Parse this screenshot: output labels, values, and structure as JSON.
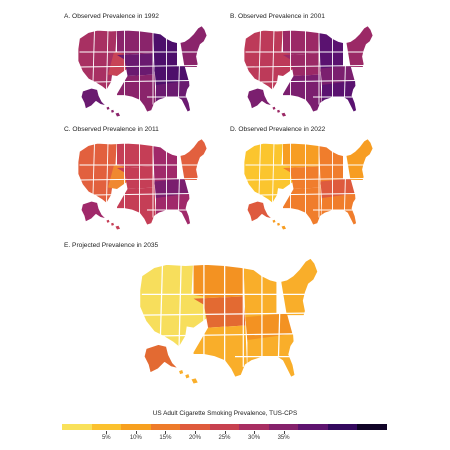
{
  "panels": [
    {
      "id": "A",
      "title": "A. Observed Prevalence in 1992",
      "palette": [
        "#4d0f6b",
        "#6a1a70",
        "#8a246b",
        "#a83062",
        "#c84456"
      ]
    },
    {
      "id": "B",
      "title": "B. Observed Prevalence in 2001",
      "palette": [
        "#5a1270",
        "#7b1f6f",
        "#9b2966",
        "#bd3a59",
        "#dd533f"
      ]
    },
    {
      "id": "C",
      "title": "C. Observed Prevalence in 2011",
      "palette": [
        "#7a1e6e",
        "#a0296a",
        "#c53e56",
        "#e2603e",
        "#f08830"
      ]
    },
    {
      "id": "D",
      "title": "D. Observed Prevalence in 2022",
      "palette": [
        "#b9344e",
        "#de5a3e",
        "#f07d2c",
        "#f79d22",
        "#fbc52e"
      ]
    },
    {
      "id": "E",
      "title": "E. Projected Prevalence in 2035",
      "palette": [
        "#c43c4c",
        "#e36a32",
        "#f39222",
        "#f9ae2a",
        "#f7de5c"
      ]
    }
  ],
  "legend": {
    "title": "US Adult Cigarette Smoking Prevalence, TUS-CPS",
    "ticks": [
      "5%",
      "10%",
      "15%",
      "20%",
      "25%",
      "30%",
      "35%"
    ],
    "colors": [
      "#f9e15a",
      "#fbc12e",
      "#f7a01f",
      "#ee7b2a",
      "#df5a3c",
      "#c7414f",
      "#a82e62",
      "#85216b",
      "#5e146f",
      "#33095e",
      "#100427"
    ]
  }
}
